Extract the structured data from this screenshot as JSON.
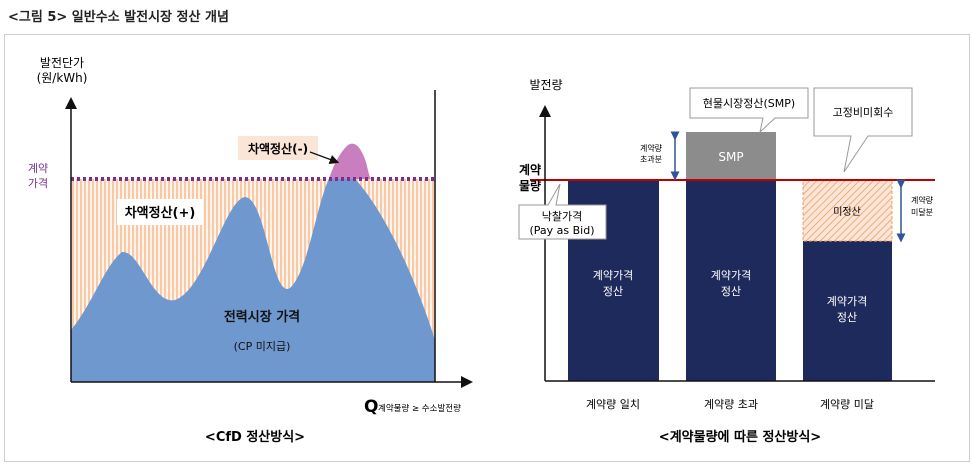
{
  "figure": {
    "title": "<그림 5> 일반수소 발전시장 정산 개념"
  },
  "left": {
    "y_label_line1": "발전단가",
    "y_label_line2": "(원/kWh)",
    "contract_price_line1": "계약",
    "contract_price_line2": "가격",
    "diff_minus_label": "차액정산(-)",
    "diff_plus_label": "차액정산(+)",
    "market_price_line1": "전력시장 가격",
    "market_price_line2": "(CP 미지급)",
    "x_label_q": "Q",
    "x_label_sub": "계약물량 ≥ 수소발전량",
    "caption": "<CfD 정산방식>"
  },
  "right": {
    "y_label": "발전량",
    "contract_qty_line1": "계약",
    "contract_qty_line2": "물량",
    "bid_callout_line1": "낙찰가격",
    "bid_callout_line2": "(Pay as Bid)",
    "smp_callout": "현물시장정산(SMP)",
    "fixed_callout": "고정비미회수",
    "excess_line1": "계약량",
    "excess_line2": "초과분",
    "shortfall_line1": "계약량",
    "shortfall_line2": "미달분",
    "smp_box": "SMP",
    "unsettled_box": "미정산",
    "bar_text_line1": "계약가격",
    "bar_text_line2": "정산",
    "categories": [
      "계약량 일치",
      "계약량 초과",
      "계약량 미달"
    ],
    "caption": "<계약물량에 따른 정산방식>"
  },
  "colors": {
    "market_area": "#6f98cf",
    "contract_dotted_line": "#7a2f8e",
    "diff_minus_fill": "#c97fbf",
    "hatch": "#f4b183",
    "navy_bar": "#1f2a5c",
    "smp_box": "#8c8c8c",
    "red_line": "#c00000",
    "arrow_blue": "#2f5597"
  }
}
